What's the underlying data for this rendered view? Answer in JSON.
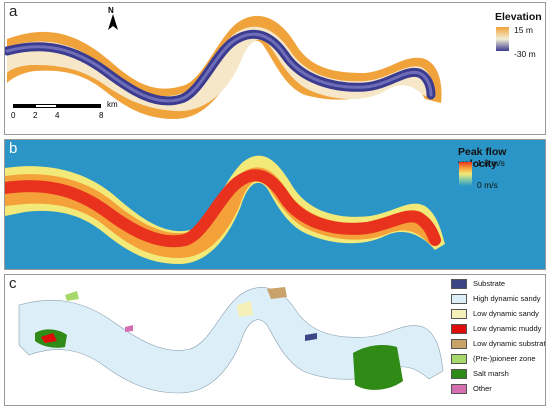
{
  "panels": {
    "a": {
      "label": "a",
      "legend": {
        "title": "Elevation",
        "max_label": "15 m",
        "min_label": "-30 m"
      },
      "colors": {
        "high": "#f0a23b",
        "mid": "#f3efd6",
        "low": "#3b3b8f"
      },
      "north_label": "N",
      "scale_bar": {
        "ticks": [
          "0",
          "2",
          "4",
          "8"
        ],
        "unit": "km"
      }
    },
    "b": {
      "label": "b",
      "legend": {
        "title": "Peak flow velocity",
        "max_label": "1.8 m/s",
        "min_label": "0 m/s"
      },
      "colors": {
        "background": "#2a95c6",
        "low": "#f2e978",
        "high": "#e8321e"
      }
    },
    "c": {
      "label": "c",
      "legend": [
        {
          "label": "Substrate",
          "color": "#3c4585"
        },
        {
          "label": "High dynamic sandy",
          "color": "#dceef8"
        },
        {
          "label": "Low dynamic sandy",
          "color": "#f4f0b8"
        },
        {
          "label": "Low dynamic muddy",
          "color": "#e00c0c"
        },
        {
          "label": "Low dynamic substrate",
          "color": "#c9a26a"
        },
        {
          "label": "(Pre-)pioneer zone",
          "color": "#a6d96a"
        },
        {
          "label": "Salt marsh",
          "color": "#2f8a16"
        },
        {
          "label": "Other",
          "color": "#d56fb0"
        }
      ]
    }
  }
}
